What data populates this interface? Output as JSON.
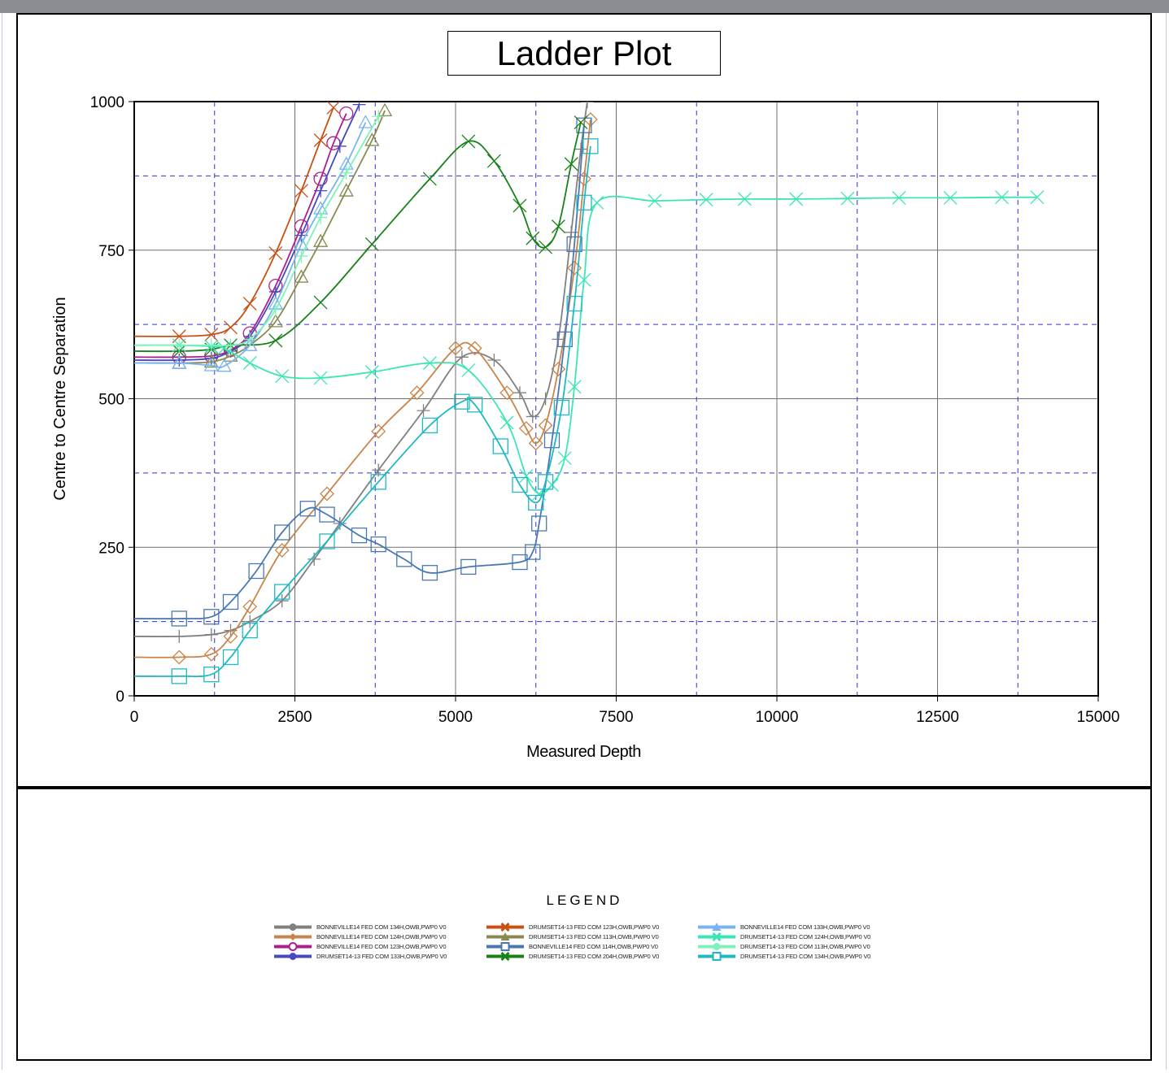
{
  "chart_data": {
    "type": "line",
    "title": "Ladder Plot",
    "xlabel": "Measured Depth",
    "ylabel": "Centre to Centre Separation",
    "xlim": [
      0,
      15000
    ],
    "ylim": [
      0,
      1000
    ],
    "xticks": [
      "0",
      "2500",
      "5000",
      "7500",
      "10000",
      "12500",
      "15000"
    ],
    "yticks": [
      "0",
      "250",
      "500",
      "750",
      "1000"
    ],
    "grid": true,
    "legend_title": "LEGEND",
    "legend_position": "bottom",
    "series": [
      {
        "name": "BONNEVILLE14 FED COM 134H,OWB,PWP0 V0",
        "color": "#808080",
        "marker": "plus",
        "x": [
          0,
          700,
          1200,
          1500,
          1800,
          2300,
          2800,
          3200,
          3800,
          4500,
          5100,
          5600,
          6000,
          6200,
          6400,
          6600,
          6800,
          6950,
          7050
        ],
        "y": [
          100,
          100,
          103,
          110,
          125,
          160,
          230,
          290,
          380,
          480,
          570,
          565,
          510,
          470,
          500,
          600,
          780,
          920,
          1000
        ]
      },
      {
        "name": "BONNEVILLE14 FED COM 124H,OWB,PWP0 V0",
        "color": "#c8844a",
        "marker": "diamond",
        "x": [
          0,
          700,
          1200,
          1500,
          1800,
          2300,
          3000,
          3800,
          4400,
          5000,
          5300,
          5800,
          6100,
          6250,
          6400,
          6600,
          6850,
          7000,
          7100
        ],
        "y": [
          65,
          65,
          70,
          100,
          150,
          245,
          340,
          445,
          510,
          585,
          585,
          510,
          450,
          425,
          455,
          550,
          720,
          870,
          970
        ]
      },
      {
        "name": "BONNEVILLE14 FED COM 123H,OWB,PWP0 V0",
        "color": "#b01e8c",
        "marker": "circle",
        "x": [
          0,
          700,
          1200,
          1500,
          1800,
          2200,
          2600,
          2900,
          3100,
          3300
        ],
        "y": [
          570,
          570,
          572,
          582,
          610,
          690,
          790,
          870,
          930,
          980
        ]
      },
      {
        "name": "DRUMSET14-13 FED COM 133H,OWB,PWP0 V0",
        "color": "#4848c0",
        "marker": "plus",
        "x": [
          0,
          700,
          1200,
          1500,
          1800,
          2200,
          2600,
          2900,
          3200,
          3500
        ],
        "y": [
          565,
          565,
          568,
          580,
          605,
          680,
          775,
          850,
          925,
          995
        ]
      },
      {
        "name": "DRUMSET14-13 FED COM 123H,OWB,PWP0 V0",
        "color": "#c85014",
        "marker": "x",
        "x": [
          0,
          700,
          1200,
          1500,
          1800,
          2200,
          2600,
          2900,
          3100
        ],
        "y": [
          605,
          605,
          608,
          620,
          660,
          745,
          850,
          935,
          990
        ]
      },
      {
        "name": "DRUMSET14-13 FED COM 113H,OWB,PWP0 V0",
        "color": "#8a8a50",
        "marker": "triangle",
        "x": [
          0,
          700,
          1200,
          1500,
          1800,
          2200,
          2600,
          2900,
          3300,
          3700,
          3900
        ],
        "y": [
          560,
          560,
          562,
          572,
          590,
          630,
          705,
          765,
          850,
          935,
          985
        ]
      },
      {
        "name": "BONNEVILLE14 FED COM 114H,OWB,PWP0 V0",
        "color": "#4878b4",
        "marker": "square",
        "x": [
          0,
          700,
          1200,
          1500,
          1900,
          2300,
          2700,
          3000,
          3500,
          3800,
          4200,
          4600,
          5200,
          6000,
          6200,
          6300,
          6500,
          6700,
          6850,
          7000
        ],
        "y": [
          130,
          130,
          133,
          158,
          210,
          275,
          315,
          305,
          270,
          255,
          230,
          207,
          217,
          225,
          242,
          290,
          430,
          600,
          760,
          960
        ]
      },
      {
        "name": "DRUMSET14-13 FED COM 204H,OWB,PWP0 V0",
        "color": "#188218",
        "marker": "x",
        "x": [
          0,
          700,
          1200,
          1500,
          2200,
          2900,
          3700,
          4600,
          5200,
          5600,
          6000,
          6200,
          6400,
          6600,
          6800,
          6950
        ],
        "y": [
          580,
          580,
          583,
          590,
          598,
          662,
          760,
          870,
          933,
          900,
          825,
          770,
          755,
          790,
          895,
          965
        ]
      },
      {
        "name": "BONNEVILLE14 FED COM 133H,OWB,PWP0 V0",
        "color": "#78b4f0",
        "marker": "triangle",
        "x": [
          0,
          700,
          1200,
          1400,
          1800,
          2200,
          2600,
          2900,
          3300,
          3600
        ],
        "y": [
          560,
          560,
          556,
          555,
          590,
          660,
          760,
          820,
          895,
          965
        ]
      },
      {
        "name": "DRUMSET14-13 FED COM 124H,OWB,PWP0 V0",
        "color": "#3ce6b4",
        "marker": "x",
        "x": [
          0,
          700,
          1200,
          1400,
          1800,
          2300,
          2900,
          3700,
          4600,
          5200,
          5800,
          6100,
          6300,
          6500,
          6700,
          6850,
          7000,
          7200,
          8100,
          8900,
          9500,
          10300,
          11100,
          11900,
          12700,
          13500,
          14050
        ],
        "y": [
          590,
          590,
          588,
          585,
          560,
          538,
          535,
          545,
          560,
          548,
          460,
          370,
          340,
          355,
          400,
          520,
          700,
          830,
          833,
          835,
          836,
          836,
          837,
          838,
          838,
          839,
          839
        ]
      },
      {
        "name": "DRUMSET14-13 FED COM 113H,OWB,PWP0 V0",
        "color": "#7ef2b8",
        "marker": "plus",
        "x": [
          0,
          700,
          1200,
          1500,
          1800,
          2200,
          2600,
          2900,
          3300,
          3800
        ],
        "y": [
          590,
          590,
          590,
          590,
          600,
          650,
          740,
          805,
          880,
          975
        ]
      },
      {
        "name": "DRUMSET14-13 FED COM 134H,OWB,PWP0 V0",
        "color": "#1eb9c3",
        "marker": "square",
        "x": [
          0,
          700,
          1200,
          1500,
          1800,
          2300,
          3000,
          3800,
          4600,
          5100,
          5300,
          5700,
          6000,
          6250,
          6400,
          6650,
          6850,
          7000,
          7100
        ],
        "y": [
          33,
          33,
          36,
          65,
          110,
          175,
          260,
          360,
          455,
          495,
          490,
          420,
          355,
          325,
          360,
          485,
          660,
          830,
          925
        ]
      }
    ]
  }
}
